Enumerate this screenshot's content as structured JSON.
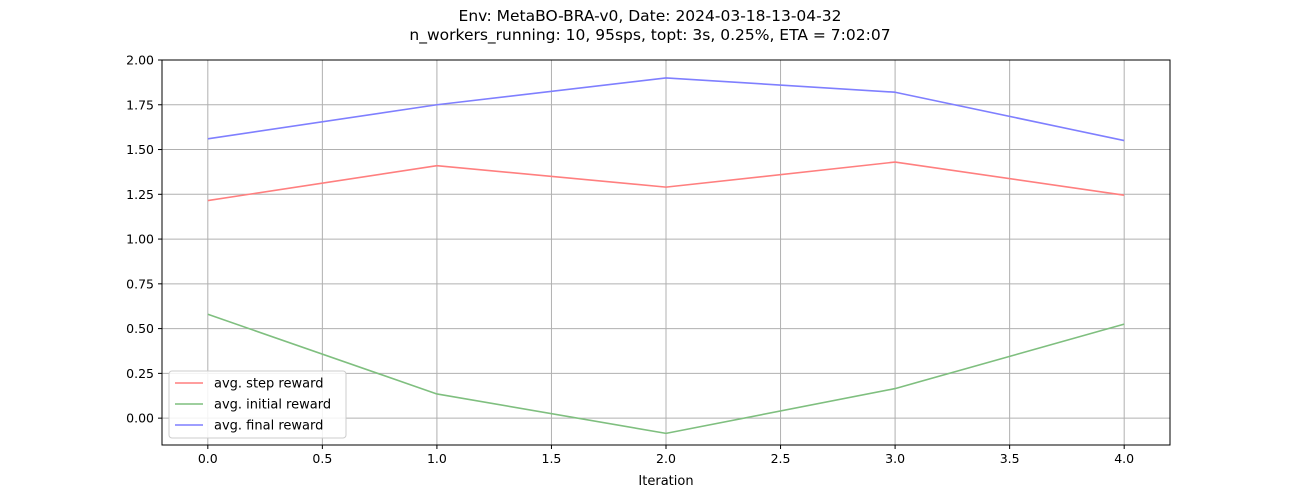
{
  "chart_data": {
    "type": "line",
    "title": "Env: MetaBO-BRA-v0, Date: 2024-03-18-13-04-32",
    "subtitle": "n_workers_running: 10, 95sps, topt: 3s, 0.25%, ETA = 7:02:07",
    "xlabel": "Iteration",
    "ylabel": "",
    "x": [
      0,
      1,
      2,
      3,
      4
    ],
    "xlim": [
      -0.2,
      4.2
    ],
    "ylim": [
      -0.15,
      2.0
    ],
    "xticks": [
      0.0,
      0.5,
      1.0,
      1.5,
      2.0,
      2.5,
      3.0,
      3.5,
      4.0
    ],
    "xtick_labels": [
      "0.0",
      "0.5",
      "1.0",
      "1.5",
      "2.0",
      "2.5",
      "3.0",
      "3.5",
      "4.0"
    ],
    "yticks": [
      0.0,
      0.25,
      0.5,
      0.75,
      1.0,
      1.25,
      1.5,
      1.75,
      2.0
    ],
    "ytick_labels": [
      "0.00",
      "0.25",
      "0.50",
      "0.75",
      "1.00",
      "1.25",
      "1.50",
      "1.75",
      "2.00"
    ],
    "grid": true,
    "legend_position": "lower-left",
    "series": [
      {
        "name": "avg. step reward",
        "color": "#ff7f7f",
        "values": [
          1.215,
          1.41,
          1.29,
          1.43,
          1.245
        ]
      },
      {
        "name": "avg. initial reward",
        "color": "#7fbf7f",
        "values": [
          0.58,
          0.135,
          -0.085,
          0.165,
          0.525
        ]
      },
      {
        "name": "avg. final reward",
        "color": "#7f7fff",
        "values": [
          1.56,
          1.75,
          1.9,
          1.82,
          1.55
        ]
      }
    ]
  }
}
